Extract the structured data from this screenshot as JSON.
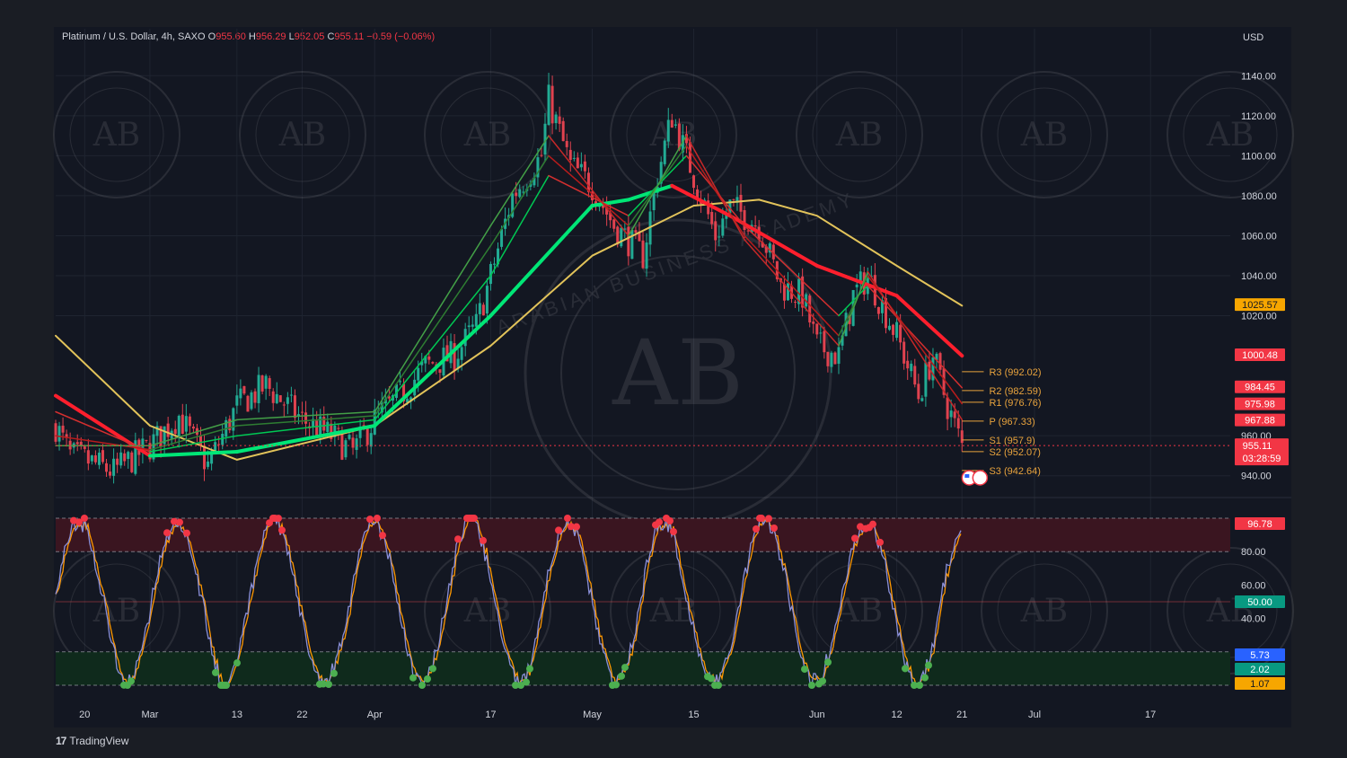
{
  "header": {
    "symbol": "Platinum / U.S. Dollar, 4h, SAXO",
    "open_label": "O",
    "open": "955.60",
    "high_label": "H",
    "high": "956.29",
    "low_label": "L",
    "low": "952.05",
    "close_label": "C",
    "close": "955.11",
    "change": "−0.59 (−0.06%)"
  },
  "footer": {
    "brand": "TradingView",
    "logo": "17"
  },
  "colors": {
    "background": "#131722",
    "grid": "#1f2430",
    "up": "#22ab94",
    "down": "#e0424f",
    "ema_green": "#00e676",
    "ema_red": "#ff1f2d",
    "sma_long": "#e2c35a",
    "stoch_k": "#8a8fd8",
    "stoch_d": "#ff9800",
    "pivot": "#e8a33d",
    "tag_red": "#f23645",
    "tag_orange": "#f7a600",
    "tag_green": "#089981",
    "tag_blue": "#2962ff"
  },
  "watermark": {
    "text": "AB",
    "ring_text": "ARABIAN BUSINESS ACADEMY"
  },
  "chart_data": [
    {
      "type": "candlestick",
      "title": "Platinum / U.S. Dollar, 4h, SAXO",
      "unit": "USD",
      "ylim": [
        930,
        1150
      ],
      "y_ticks": [
        940,
        960,
        1020,
        1040,
        1060,
        1080,
        1100,
        1120,
        1140
      ],
      "y_tick_labels": [
        "940.00",
        "960.00",
        "1020.00",
        "1040.00",
        "1060.00",
        "1080.00",
        "1100.00",
        "1120.00",
        "1140.00"
      ],
      "x_tick_labels": [
        "20",
        "Mar",
        "13",
        "22",
        "Apr",
        "17",
        "May",
        "15",
        "Jun",
        "12",
        "21",
        "Jul",
        "17"
      ],
      "x_tick_dates": [
        "2023-02-20",
        "2023-03-01",
        "2023-03-13",
        "2023-03-22",
        "2023-04-01",
        "2023-04-17",
        "2023-05-01",
        "2023-05-15",
        "2023-06-01",
        "2023-06-12",
        "2023-06-21",
        "2023-07-01",
        "2023-07-17"
      ],
      "x_range": [
        "2023-02-16",
        "2023-07-28"
      ],
      "price_path": [
        [
          "2023-02-16",
          965
        ],
        [
          "2023-02-18",
          950
        ],
        [
          "2023-02-20",
          948
        ],
        [
          "2023-02-24",
          942
        ],
        [
          "2023-03-01",
          955
        ],
        [
          "2023-03-05",
          970
        ],
        [
          "2023-03-09",
          945
        ],
        [
          "2023-03-13",
          975
        ],
        [
          "2023-03-17",
          985
        ],
        [
          "2023-03-22",
          968
        ],
        [
          "2023-03-26",
          960
        ],
        [
          "2023-03-29",
          952
        ],
        [
          "2023-04-01",
          968
        ],
        [
          "2023-04-05",
          982
        ],
        [
          "2023-04-08",
          995
        ],
        [
          "2023-04-12",
          1000
        ],
        [
          "2023-04-15",
          1015
        ],
        [
          "2023-04-17",
          1040
        ],
        [
          "2023-04-20",
          1080
        ],
        [
          "2023-04-24",
          1100
        ],
        [
          "2023-04-25",
          1128
        ],
        [
          "2023-04-28",
          1095
        ],
        [
          "2023-05-01",
          1085
        ],
        [
          "2023-05-04",
          1065
        ],
        [
          "2023-05-08",
          1050
        ],
        [
          "2023-05-10",
          1090
        ],
        [
          "2023-05-12",
          1120
        ],
        [
          "2023-05-15",
          1090
        ],
        [
          "2023-05-18",
          1060
        ],
        [
          "2023-05-20",
          1075
        ],
        [
          "2023-05-24",
          1065
        ],
        [
          "2023-05-27",
          1035
        ],
        [
          "2023-05-30",
          1030
        ],
        [
          "2023-06-01",
          1005
        ],
        [
          "2023-06-04",
          1000
        ],
        [
          "2023-06-06",
          1030
        ],
        [
          "2023-06-08",
          1040
        ],
        [
          "2023-06-12",
          1010
        ],
        [
          "2023-06-15",
          980
        ],
        [
          "2023-06-17",
          1000
        ],
        [
          "2023-06-19",
          975
        ],
        [
          "2023-06-21",
          955
        ]
      ],
      "last_price": 955.11,
      "last_price_label": "955.11",
      "countdown": "03:28:59",
      "currency_label": "USD",
      "moving_averages": [
        {
          "role": "long sma",
          "color": "#e2c35a",
          "value": 1025.57,
          "value_label": "1025.57",
          "tag_color": "#f7a600",
          "path": [
            [
              "2023-02-16",
              1010
            ],
            [
              "2023-03-01",
              965
            ],
            [
              "2023-03-13",
              948
            ],
            [
              "2023-04-01",
              965
            ],
            [
              "2023-04-17",
              1005
            ],
            [
              "2023-05-01",
              1050
            ],
            [
              "2023-05-15",
              1075
            ],
            [
              "2023-05-24",
              1078
            ],
            [
              "2023-06-01",
              1070
            ],
            [
              "2023-06-12",
              1045
            ],
            [
              "2023-06-21",
              1025
            ]
          ]
        },
        {
          "role": "ema",
          "color": "#00e676",
          "color_down": "#ff1f2d",
          "value": 1000.48,
          "value_label": "1000.48",
          "tag_color": "#f23645",
          "path": [
            [
              "2023-02-16",
              980
            ],
            [
              "2023-03-01",
              950
            ],
            [
              "2023-03-13",
              952
            ],
            [
              "2023-04-01",
              965
            ],
            [
              "2023-04-17",
              1020
            ],
            [
              "2023-05-01",
              1075
            ],
            [
              "2023-05-06",
              1078
            ],
            [
              "2023-05-12",
              1085
            ],
            [
              "2023-05-20",
              1070
            ],
            [
              "2023-06-01",
              1045
            ],
            [
              "2023-06-12",
              1030
            ],
            [
              "2023-06-21",
              1000
            ]
          ]
        },
        {
          "role": "ema",
          "color": "#00c853",
          "color_down": "#d32f2f",
          "value": 984.45,
          "value_label": "984.45",
          "tag_color": "#f23645",
          "path": [
            [
              "2023-02-16",
              972
            ],
            [
              "2023-03-01",
              952
            ],
            [
              "2023-03-13",
              960
            ],
            [
              "2023-04-01",
              968
            ],
            [
              "2023-04-17",
              1040
            ],
            [
              "2023-04-25",
              1090
            ],
            [
              "2023-05-06",
              1070
            ],
            [
              "2023-05-14",
              1100
            ],
            [
              "2023-05-22",
              1065
            ],
            [
              "2023-06-04",
              1020
            ],
            [
              "2023-06-08",
              1035
            ],
            [
              "2023-06-21",
              984
            ]
          ]
        },
        {
          "role": "ema",
          "color": "#2e7d32",
          "color_down": "#b71c1c",
          "value": 975.98,
          "value_label": "975.98",
          "tag_color": "#f23645",
          "path": [
            [
              "2023-02-16",
              960
            ],
            [
              "2023-03-01",
              953
            ],
            [
              "2023-03-13",
              965
            ],
            [
              "2023-04-01",
              970
            ],
            [
              "2023-04-17",
              1055
            ],
            [
              "2023-04-25",
              1100
            ],
            [
              "2023-05-06",
              1065
            ],
            [
              "2023-05-14",
              1105
            ],
            [
              "2023-05-22",
              1060
            ],
            [
              "2023-06-04",
              1010
            ],
            [
              "2023-06-08",
              1040
            ],
            [
              "2023-06-21",
              976
            ]
          ]
        },
        {
          "role": "ema",
          "color": "#43a047",
          "color_down": "#c62828",
          "value": 967.88,
          "value_label": "967.88",
          "tag_color": "#f23645",
          "path": [
            [
              "2023-02-16",
              955
            ],
            [
              "2023-03-01",
              955
            ],
            [
              "2023-03-13",
              968
            ],
            [
              "2023-04-01",
              972
            ],
            [
              "2023-04-17",
              1065
            ],
            [
              "2023-04-25",
              1110
            ],
            [
              "2023-05-06",
              1060
            ],
            [
              "2023-05-14",
              1110
            ],
            [
              "2023-05-22",
              1058
            ],
            [
              "2023-06-04",
              1005
            ],
            [
              "2023-06-08",
              1042
            ],
            [
              "2023-06-21",
              968
            ]
          ]
        }
      ],
      "pivot_levels": [
        {
          "label": "R3 (992.02)",
          "value": 992.02
        },
        {
          "label": "R2 (982.59)",
          "value": 982.59
        },
        {
          "label": "R1 (976.76)",
          "value": 976.76
        },
        {
          "label": "P (967.33)",
          "value": 967.33
        },
        {
          "label": "S1 (957.9)",
          "value": 957.9
        },
        {
          "label": "S2 (952.07)",
          "value": 952.07
        },
        {
          "label": "S3 (942.64)",
          "value": 942.64
        }
      ],
      "event_markers": [
        {
          "date": "2023-06-22",
          "value": 939,
          "icon": "us-flag-icon"
        }
      ]
    },
    {
      "type": "line",
      "role": "stochastic oscillator",
      "ylim": [
        0,
        100
      ],
      "y_tick_labels": [
        "40.00",
        "60.00",
        "80.00"
      ],
      "y_ticks": [
        40,
        60,
        80
      ],
      "bands": {
        "overbought": 80,
        "oversold": 20,
        "mid": 50,
        "top": 100,
        "bottom": 0
      },
      "value_tags": [
        {
          "value": 96.78,
          "label": "96.78",
          "color": "#f23645"
        },
        {
          "value": 50.0,
          "label": "50.00",
          "color": "#089981"
        },
        {
          "value": 5.73,
          "label": "5.73",
          "color": "#2962ff"
        },
        {
          "value": 2.02,
          "label": "2.02",
          "color": "#089981"
        },
        {
          "value": 1.07,
          "label": "1.07",
          "color": "#f7a600"
        }
      ]
    }
  ]
}
